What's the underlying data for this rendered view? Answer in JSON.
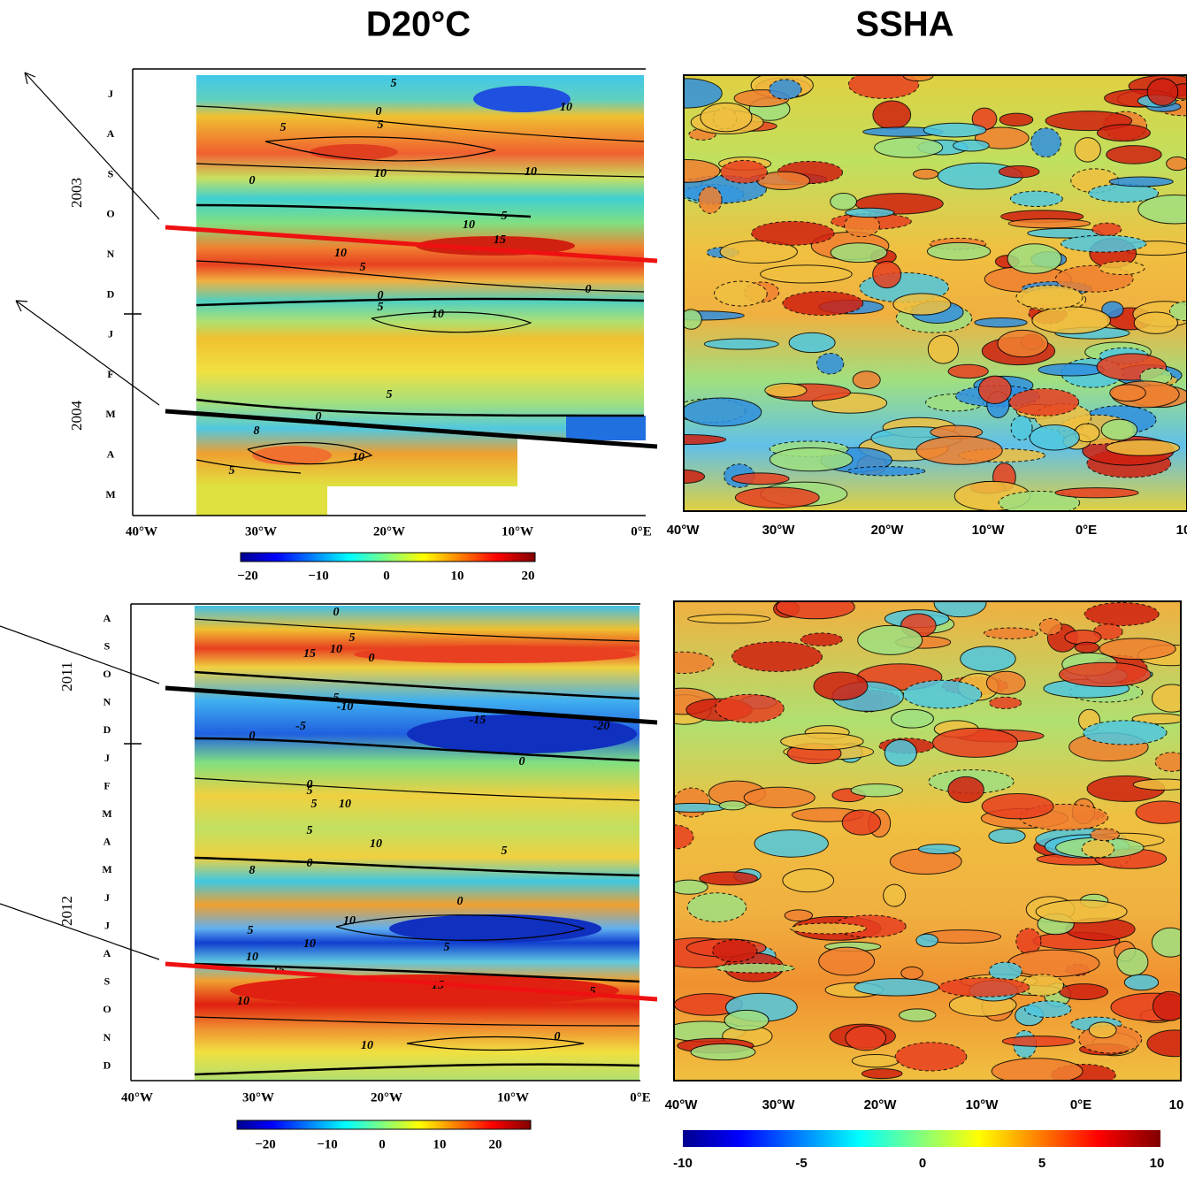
{
  "titles": [
    "D20°C",
    "SSHA"
  ],
  "top_left": {
    "months": [
      "J",
      "A",
      "S",
      "O",
      "N",
      "D",
      "J",
      "F",
      "M",
      "A",
      "M"
    ],
    "years": [
      "2003",
      "2004"
    ],
    "x_labels": [
      "40°W",
      "30°W",
      "20°W",
      "10°W",
      "0°E"
    ],
    "colorbar_ticks": [
      "−20",
      "−10",
      "0",
      "10",
      "20"
    ],
    "contour_labels": [
      "5",
      "10",
      "0",
      "5",
      "5",
      "10",
      "10",
      "0",
      "10",
      "5",
      "15",
      "10",
      "5",
      "0",
      "0",
      "5",
      "10",
      "5",
      "0",
      "8",
      "10",
      "5"
    ]
  },
  "top_right": {
    "x_labels": [
      "40°W",
      "30°W",
      "20°W",
      "10°W",
      "0°E",
      "10"
    ]
  },
  "bottom_left": {
    "months": [
      "A",
      "S",
      "O",
      "N",
      "D",
      "J",
      "F",
      "M",
      "A",
      "M",
      "J",
      "J",
      "A",
      "S",
      "O",
      "N",
      "D"
    ],
    "years": [
      "2011",
      "2012"
    ],
    "x_labels": [
      "40°W",
      "30°W",
      "20°W",
      "10°W",
      "0°E"
    ],
    "colorbar_ticks": [
      "−20",
      "−10",
      "0",
      "10",
      "20"
    ],
    "contour_labels": [
      "0",
      "15",
      "10",
      "5",
      "0",
      "5",
      "-10",
      "-5",
      "-15",
      "-20",
      "0",
      "0",
      "0",
      "5",
      "5",
      "10",
      "5",
      "10",
      "5",
      "0",
      "8",
      "0",
      "10",
      "5",
      "10",
      "5",
      "10",
      "15",
      "10",
      "15",
      "5",
      "10",
      "0"
    ]
  },
  "bottom_right": {
    "x_labels": [
      "40°W",
      "30°W",
      "20°W",
      "10°W",
      "0°E",
      "10"
    ],
    "colorbar_ticks": [
      "-10",
      "-5",
      "0",
      "5",
      "10"
    ]
  }
}
